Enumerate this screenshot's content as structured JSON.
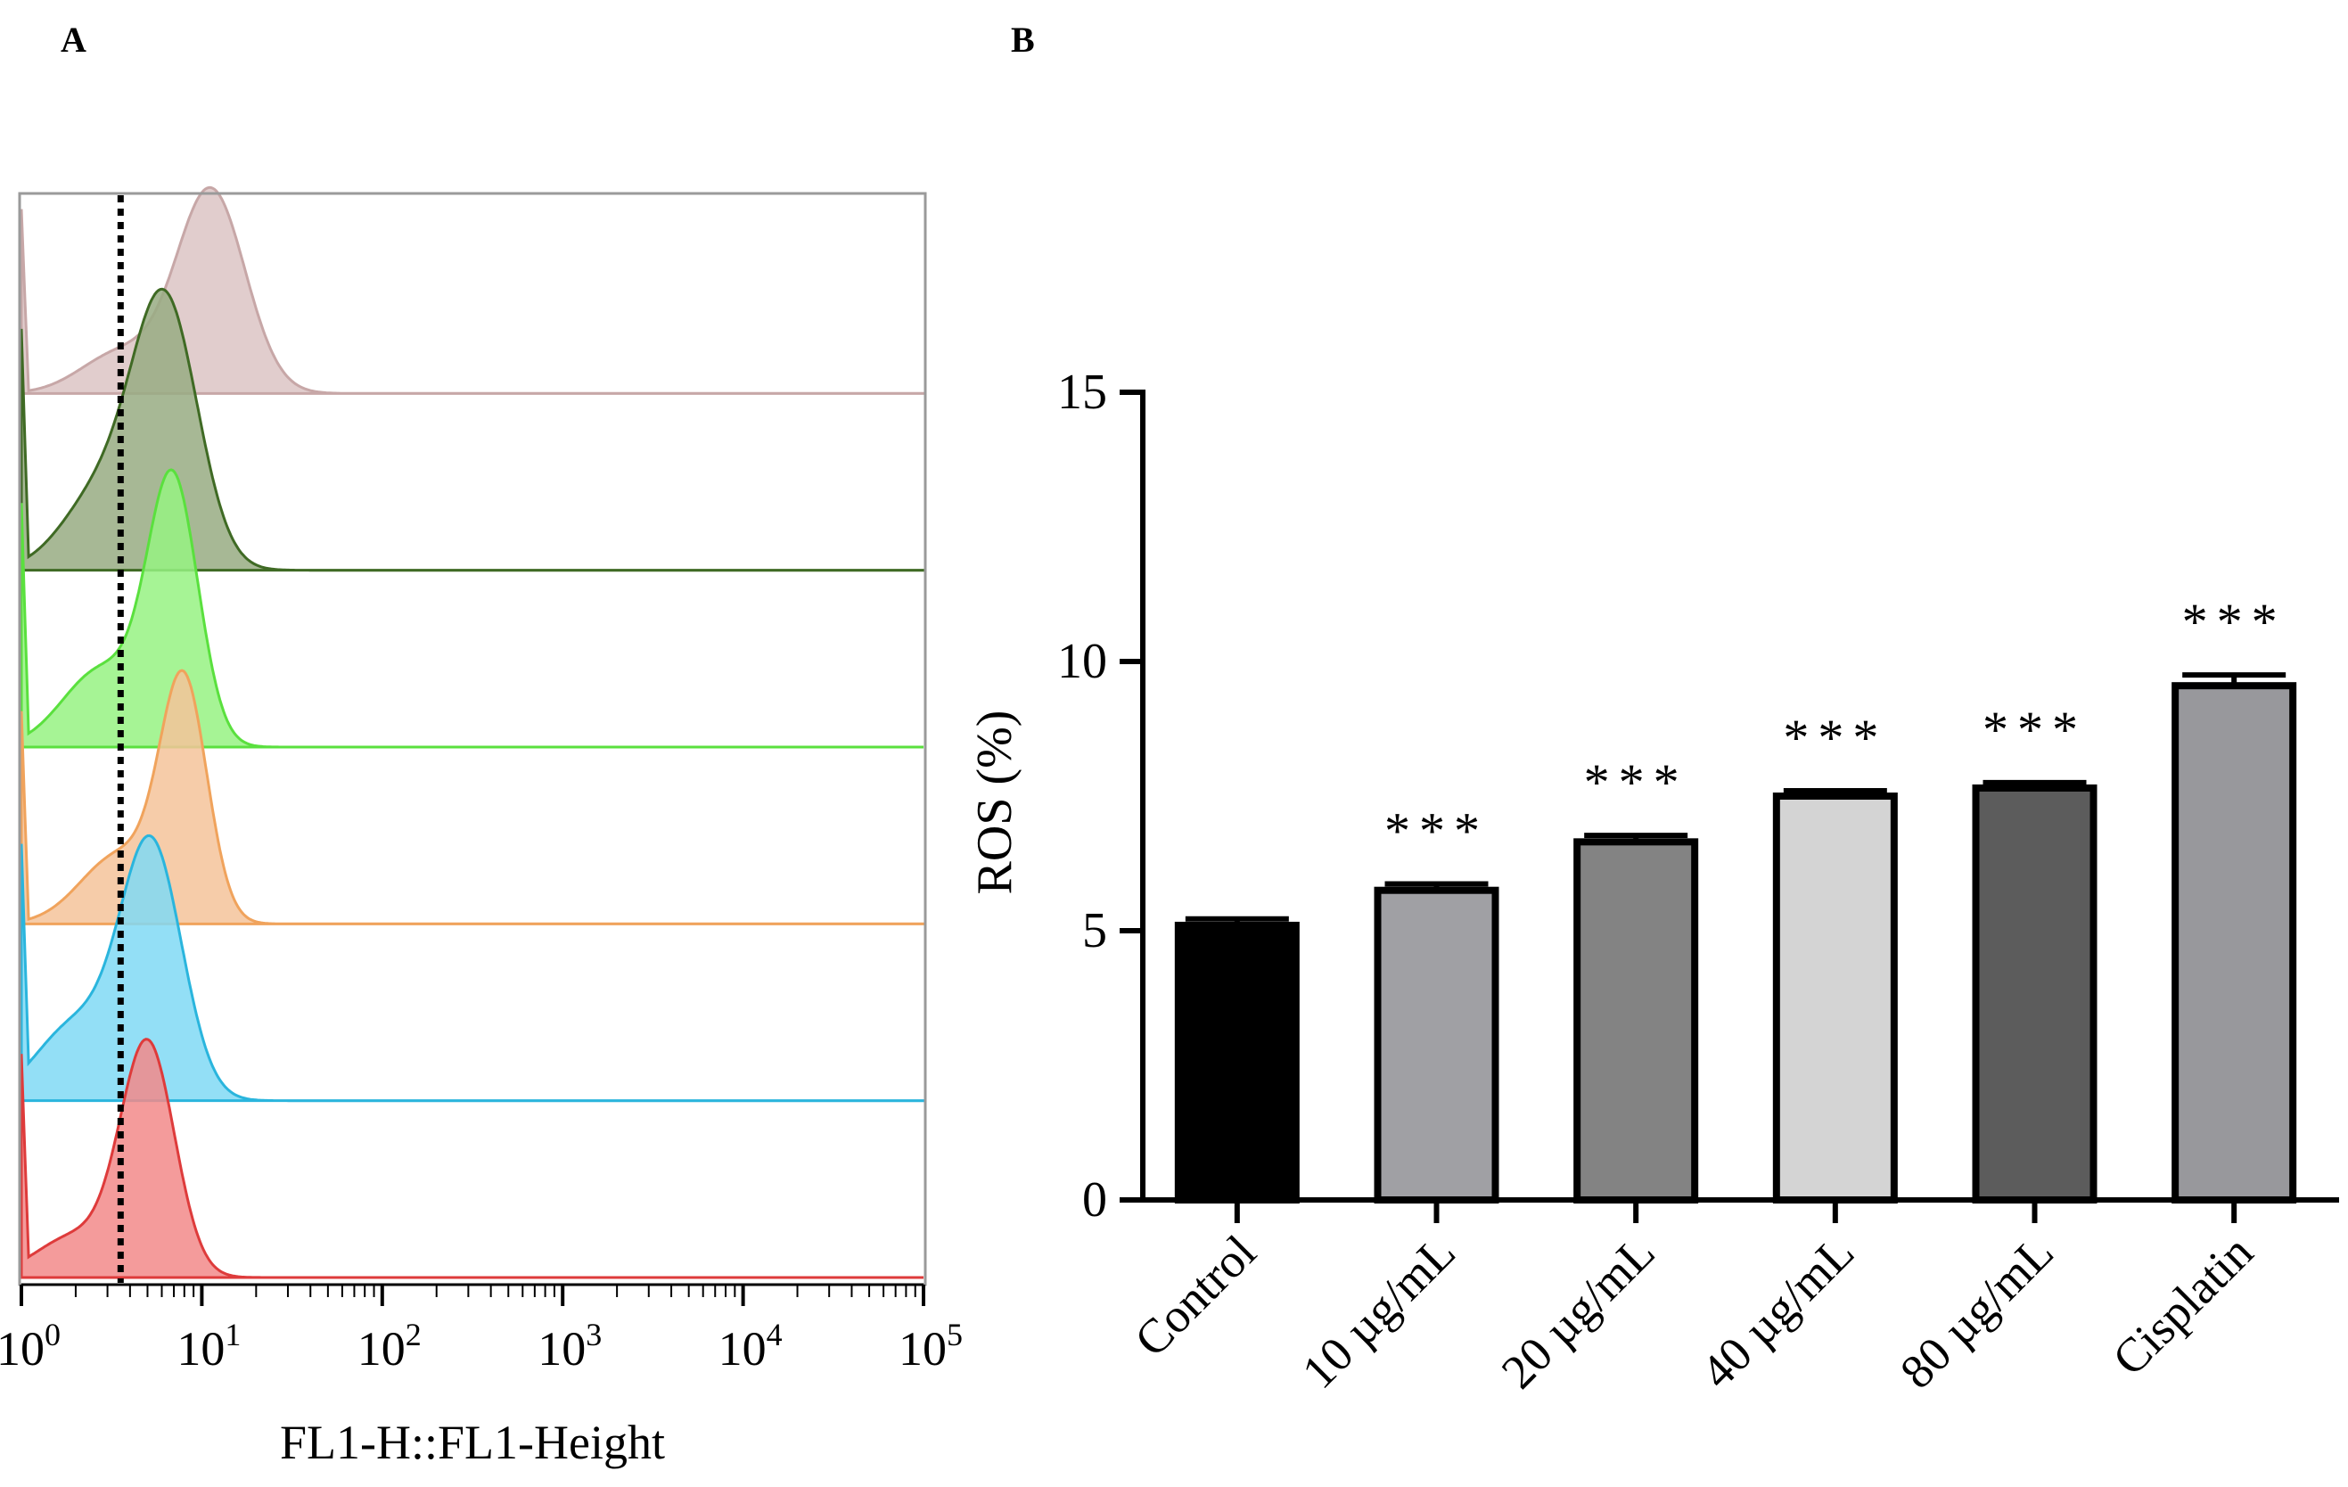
{
  "figure": {
    "panel_a_label": "A",
    "panel_b_label": "B"
  },
  "chart_data": [
    {
      "type": "histogram-overlay",
      "panel": "A",
      "xlabel": "FL1-H::FL1-Height",
      "x_scale": "log",
      "xlim": [
        1,
        100000
      ],
      "x_ticks": [
        {
          "base": "10",
          "exp": "0",
          "value": 1
        },
        {
          "base": "10",
          "exp": "1",
          "value": 10
        },
        {
          "base": "10",
          "exp": "2",
          "value": 100
        },
        {
          "base": "10",
          "exp": "3",
          "value": 1000
        },
        {
          "base": "10",
          "exp": "4",
          "value": 10000
        },
        {
          "base": "10",
          "exp": "5",
          "value": 100000
        }
      ],
      "gate_log10": 0.55,
      "series": [
        {
          "name": "Cisplatin",
          "fill": "#dcc4c4",
          "stroke": "#c7a7a7",
          "peak_log10": 1.05,
          "sigma": 0.19,
          "shoulder_log10": 0.55,
          "shoulder_height": 0.2,
          "height": 0.74
        },
        {
          "name": "80 µg/mL",
          "fill": "#98ab82",
          "stroke": "#3f6a24",
          "peak_log10": 0.8,
          "sigma": 0.18,
          "shoulder_log10": 0.45,
          "shoulder_height": 0.3,
          "height": 0.94
        },
        {
          "name": "40 µg/mL",
          "fill": "#96f282",
          "stroke": "#5ae03e",
          "peak_log10": 0.84,
          "sigma": 0.14,
          "shoulder_log10": 0.45,
          "shoulder_height": 0.3,
          "height": 0.95
        },
        {
          "name": "20 µg/mL",
          "fill": "#f5c39a",
          "stroke": "#f0a35c",
          "peak_log10": 0.9,
          "sigma": 0.13,
          "shoulder_log10": 0.55,
          "shoulder_height": 0.3,
          "height": 0.85
        },
        {
          "name": "10 µg/mL",
          "fill": "#80d9f4",
          "stroke": "#2ab5dd",
          "peak_log10": 0.72,
          "sigma": 0.17,
          "shoulder_log10": 0.3,
          "shoulder_height": 0.3,
          "height": 0.92
        },
        {
          "name": "Control",
          "fill": "#f28a8a",
          "stroke": "#de3b3b",
          "peak_log10": 0.7,
          "sigma": 0.15,
          "shoulder_log10": 0.3,
          "shoulder_height": 0.18,
          "height": 0.84
        }
      ]
    },
    {
      "type": "bar",
      "panel": "B",
      "ylabel": "ROS (%)",
      "ylim": [
        0,
        15
      ],
      "y_ticks": [
        "0",
        "5",
        "10",
        "15"
      ],
      "categories": [
        "Control",
        "10 µg/mL",
        "20 µg/mL",
        "40 µg/mL",
        "80 µg/mL",
        "Cisplatin"
      ],
      "values": [
        5.1,
        5.75,
        6.65,
        7.5,
        7.65,
        9.55
      ],
      "errors": [
        0.12,
        0.12,
        0.12,
        0.1,
        0.1,
        0.2
      ],
      "significance": [
        "",
        "***",
        "***",
        "***",
        "***",
        "***"
      ],
      "bar_colors": [
        "#000000",
        "#a0a0a4",
        "#838383",
        "#d4d4d4",
        "#5c5c5c",
        "#98989c"
      ]
    }
  ]
}
